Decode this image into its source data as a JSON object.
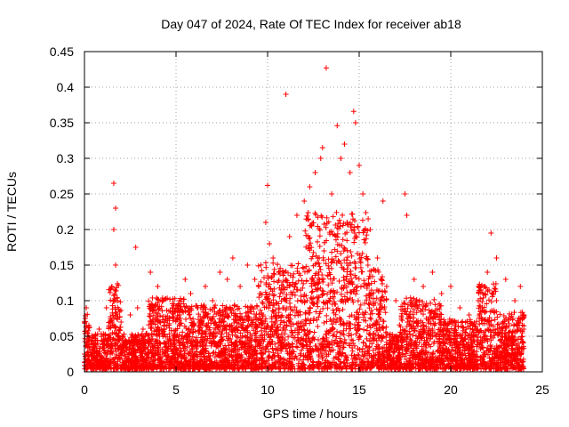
{
  "chart_data": {
    "type": "scatter",
    "title": "Day 047 of 2024, Rate Of TEC Index for receiver ab18",
    "xlabel": "GPS time / hours",
    "ylabel": "ROTI / TECUs",
    "xlim": [
      0,
      25
    ],
    "ylim": [
      0,
      0.45
    ],
    "xticks": [
      "0",
      "5",
      "10",
      "15",
      "20",
      "25"
    ],
    "yticks": [
      "0",
      "0.05",
      "0.1",
      "0.15",
      "0.2",
      "0.25",
      "0.3",
      "0.35",
      "0.4",
      "0.45"
    ],
    "grid": true,
    "marker": "+",
    "color": "#ff0000",
    "series": [
      {
        "name": "ROTI",
        "x": [
          0.0,
          0.1,
          0.2,
          0.3,
          0.5,
          0.8,
          1.2,
          1.5,
          1.6,
          1.6,
          1.7,
          1.7,
          1.8,
          2.0,
          2.5,
          2.8,
          2.9,
          3.2,
          3.6,
          4.0,
          4.3,
          4.8,
          5.2,
          5.5,
          5.8,
          6.2,
          6.6,
          7.0,
          7.4,
          7.8,
          8.1,
          8.5,
          8.9,
          9.3,
          9.6,
          9.9,
          10.0,
          10.1,
          10.3,
          10.6,
          11.0,
          11.2,
          11.6,
          12.0,
          12.3,
          12.6,
          12.9,
          13.0,
          13.2,
          13.5,
          13.8,
          14.0,
          14.2,
          14.5,
          14.7,
          14.8,
          15.0,
          15.2,
          15.6,
          16.0,
          16.3,
          16.5,
          17.0,
          17.5,
          17.6,
          18.0,
          18.5,
          19.0,
          19.5,
          20.0,
          20.5,
          21.0,
          21.5,
          21.8,
          22.0,
          22.2,
          22.5,
          23.0,
          23.5,
          23.8,
          24.0
        ],
        "y": [
          0.07,
          0.09,
          0.05,
          0.03,
          0.04,
          0.06,
          0.09,
          0.12,
          0.265,
          0.2,
          0.23,
          0.15,
          0.1,
          0.07,
          0.08,
          0.175,
          0.09,
          0.06,
          0.14,
          0.12,
          0.1,
          0.09,
          0.08,
          0.13,
          0.11,
          0.09,
          0.12,
          0.1,
          0.14,
          0.13,
          0.16,
          0.12,
          0.15,
          0.13,
          0.11,
          0.21,
          0.262,
          0.18,
          0.16,
          0.14,
          0.39,
          0.19,
          0.22,
          0.24,
          0.26,
          0.28,
          0.3,
          0.315,
          0.427,
          0.25,
          0.346,
          0.3,
          0.32,
          0.28,
          0.366,
          0.35,
          0.29,
          0.25,
          0.2,
          0.16,
          0.24,
          0.12,
          0.1,
          0.25,
          0.22,
          0.13,
          0.12,
          0.14,
          0.11,
          0.12,
          0.09,
          0.08,
          0.1,
          0.12,
          0.14,
          0.195,
          0.16,
          0.13,
          0.1,
          0.12,
          0.08
        ]
      }
    ]
  }
}
